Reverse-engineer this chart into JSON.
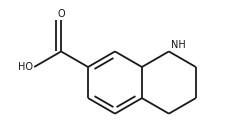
{
  "background_color": "#ffffff",
  "line_color": "#1a1a1a",
  "line_width": 1.3,
  "font_size_label": 7.0,
  "nh_label": "NH",
  "ho_label": "HO",
  "o_label": "O",
  "figsize": [
    2.3,
    1.34
  ],
  "dpi": 100,
  "bl": 0.19
}
